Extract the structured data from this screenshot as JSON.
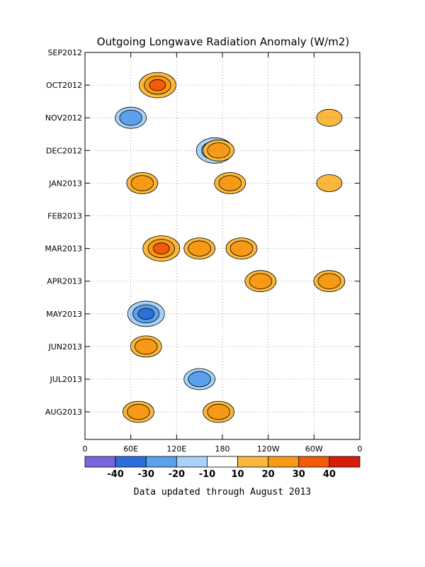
{
  "chart_data": {
    "type": "heatmap",
    "title": "Outgoing Longwave Radiation Anomaly (W/m2)",
    "xlabel": "",
    "ylabel": "",
    "x_ticks": [
      "0",
      "60E",
      "120E",
      "180",
      "120W",
      "60W",
      "0"
    ],
    "x_tick_values": [
      0,
      60,
      120,
      180,
      240,
      300,
      360
    ],
    "xlim": [
      0,
      360
    ],
    "y_ticks": [
      "SEP2012",
      "OCT2012",
      "NOV2012",
      "DEC2012",
      "JAN2013",
      "FEB2013",
      "MAR2013",
      "APR2013",
      "MAY2013",
      "JUN2013",
      "JUL2013",
      "AUG2013"
    ],
    "y_range": [
      "SEP2012",
      "AUG2013"
    ],
    "grid": true,
    "colorbar": {
      "levels": [
        "-40",
        "-30",
        "-20",
        "-10",
        "10",
        "20",
        "30",
        "40"
      ],
      "colors": [
        "#7a64dc",
        "#2b6edc",
        "#5aa2ec",
        "#a8d2f8",
        "#ffffff",
        "#fbb83c",
        "#f99a14",
        "#f45a08",
        "#d81c0a"
      ]
    },
    "anomaly_features": [
      {
        "lon": 60,
        "time": "NOV2012",
        "value": -20
      },
      {
        "lon": 95,
        "time": "OCT2012",
        "value": 30
      },
      {
        "lon": 170,
        "time": "DEC2012",
        "value": -30
      },
      {
        "lon": 175,
        "time": "DEC2012",
        "value": 20
      },
      {
        "lon": 190,
        "time": "JAN2013",
        "value": 20
      },
      {
        "lon": 75,
        "time": "JAN2013",
        "value": 20
      },
      {
        "lon": 205,
        "time": "MAR2013",
        "value": 20
      },
      {
        "lon": 100,
        "time": "MAR2013",
        "value": 30
      },
      {
        "lon": 150,
        "time": "MAR2013",
        "value": 20
      },
      {
        "lon": 80,
        "time": "MAY2013",
        "value": -30
      },
      {
        "lon": 230,
        "time": "APR2013",
        "value": 20
      },
      {
        "lon": 320,
        "time": "APR2013",
        "value": 20
      },
      {
        "lon": 320,
        "time": "JAN2013",
        "value": 10
      },
      {
        "lon": 320,
        "time": "NOV2012",
        "value": 10
      },
      {
        "lon": 80,
        "time": "JUN2013",
        "value": 20
      },
      {
        "lon": 150,
        "time": "JUL2013",
        "value": -20
      },
      {
        "lon": 175,
        "time": "AUG2013",
        "value": 20
      },
      {
        "lon": 70,
        "time": "AUG2013",
        "value": 20
      }
    ]
  },
  "footer": "Data updated through August 2013"
}
